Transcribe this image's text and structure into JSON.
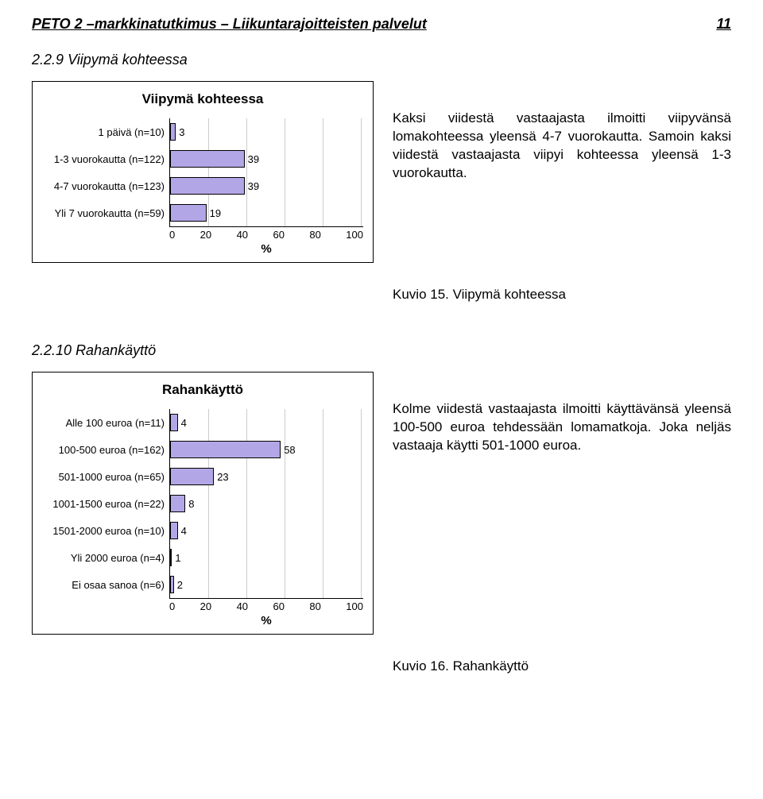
{
  "header": {
    "title": "PETO 2 –markkinatutkimus – Liikuntarajoitteisten palvelut",
    "page_number": "11"
  },
  "section1": {
    "number": "2.2.9",
    "title": "Viipymä kohteessa",
    "text": "Kaksi viidestä vastaajasta ilmoitti viipyvänsä lomakohteessa yleensä 4-7 vuorokautta. Samoin kaksi viidestä vastaajasta viipyi kohteessa yleensä 1-3 vuorokautta.",
    "caption": "Kuvio 15. Viipymä kohteessa",
    "chart": {
      "type": "bar",
      "title": "Viipymä kohteessa",
      "xlabel": "%",
      "xlim": [
        0,
        100
      ],
      "xtick_step": 20,
      "bar_color": "#b3a6e6",
      "bar_border": "#000000",
      "grid_color": "#cccccc",
      "background_color": "#ffffff",
      "label_fontsize": 13,
      "categories": [
        {
          "label": "1 päivä (n=10)",
          "value": 3
        },
        {
          "label": "1-3 vuorokautta (n=122)",
          "value": 39
        },
        {
          "label": "4-7 vuorokautta (n=123)",
          "value": 39
        },
        {
          "label": "Yli 7 vuorokautta (n=59)",
          "value": 19
        }
      ]
    }
  },
  "section2": {
    "number": "2.2.10",
    "title": "Rahankäyttö",
    "text": "Kolme viidestä vastaajasta ilmoitti käyttävänsä yleensä 100-500 euroa tehdessään lomamatkoja. Joka neljäs vastaaja käytti 501-1000 euroa.",
    "caption": "Kuvio 16. Rahankäyttö",
    "chart": {
      "type": "bar",
      "title": "Rahankäyttö",
      "xlabel": "%",
      "xlim": [
        0,
        100
      ],
      "xtick_step": 20,
      "bar_color": "#b3a6e6",
      "bar_border": "#000000",
      "grid_color": "#cccccc",
      "background_color": "#ffffff",
      "label_fontsize": 13,
      "categories": [
        {
          "label": "Alle 100 euroa (n=11)",
          "value": 4
        },
        {
          "label": "100-500 euroa (n=162)",
          "value": 58
        },
        {
          "label": "501-1000 euroa (n=65)",
          "value": 23
        },
        {
          "label": "1001-1500 euroa (n=22)",
          "value": 8
        },
        {
          "label": "1501-2000 euroa (n=10)",
          "value": 4
        },
        {
          "label": "Yli 2000 euroa (n=4)",
          "value": 1
        },
        {
          "label": "Ei osaa sanoa (n=6)",
          "value": 2
        }
      ]
    }
  }
}
